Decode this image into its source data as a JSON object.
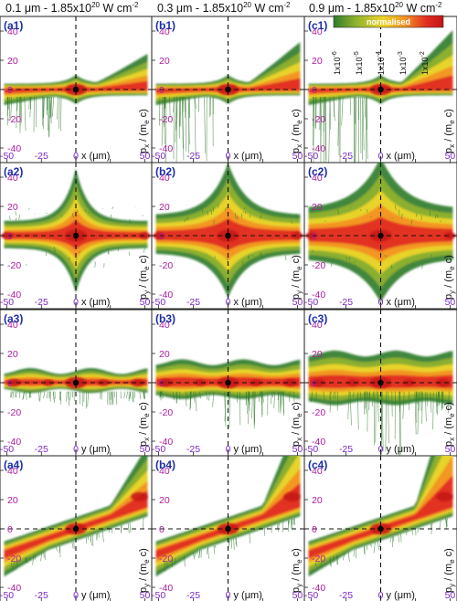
{
  "column_titles": [
    {
      "pre": "0.1 μm - 1.85x10",
      "exp": "20",
      "mid": " W cm",
      "exp2": "-2"
    },
    {
      "pre": "0.3 μm - 1.85x10",
      "exp": "20",
      "mid": " W cm",
      "exp2": "-2"
    },
    {
      "pre": "0.9 μm - 1.85x10",
      "exp": "20",
      "mid": " W cm",
      "exp2": "-2"
    }
  ],
  "colorbar": {
    "title": "normalised",
    "ticks": [
      {
        "base": "1x10",
        "exp": "-6"
      },
      {
        "base": "1x10",
        "exp": "-5"
      },
      {
        "base": "1x10",
        "exp": "-4"
      },
      {
        "base": "1x10",
        "exp": "-3"
      },
      {
        "base": "1x10",
        "exp": "-2"
      }
    ],
    "colors": [
      "#2f7a2a",
      "#8fb12e",
      "#ecd52c",
      "#f39223",
      "#e02b21",
      "#c41515"
    ]
  },
  "chart_data": {
    "type": "heatmap",
    "rows": [
      {
        "ylabel": "p_x / (m_e c)",
        "xlabel": "x (μm)",
        "panels": [
          "(a1)",
          "(b1)",
          "(c1)"
        ],
        "shape": "px_vs_x"
      },
      {
        "ylabel": "p_y / (m_e c)",
        "xlabel": "x (μm)",
        "panels": [
          "(a2)",
          "(b2)",
          "(c2)"
        ],
        "shape": "py_vs_x"
      },
      {
        "ylabel": "p_x / (m_e c)",
        "xlabel": "y (μm)",
        "panels": [
          "(a3)",
          "(b3)",
          "(c3)"
        ],
        "shape": "px_vs_y"
      },
      {
        "ylabel": "p_y / (m_e c)",
        "xlabel": "y (μm)",
        "panels": [
          "(a4)",
          "(b4)",
          "(c4)"
        ],
        "shape": "py_vs_y"
      }
    ],
    "y_ticks": [
      "40",
      "20",
      "0",
      "-20",
      "-40"
    ],
    "x_ticks": [
      "-50",
      "-25",
      "0",
      "25",
      "50"
    ],
    "xlim": [
      -55,
      55
    ],
    "ylim": [
      -50,
      50
    ],
    "grid": false,
    "reference_lines": {
      "x": 0,
      "y": 0
    }
  }
}
